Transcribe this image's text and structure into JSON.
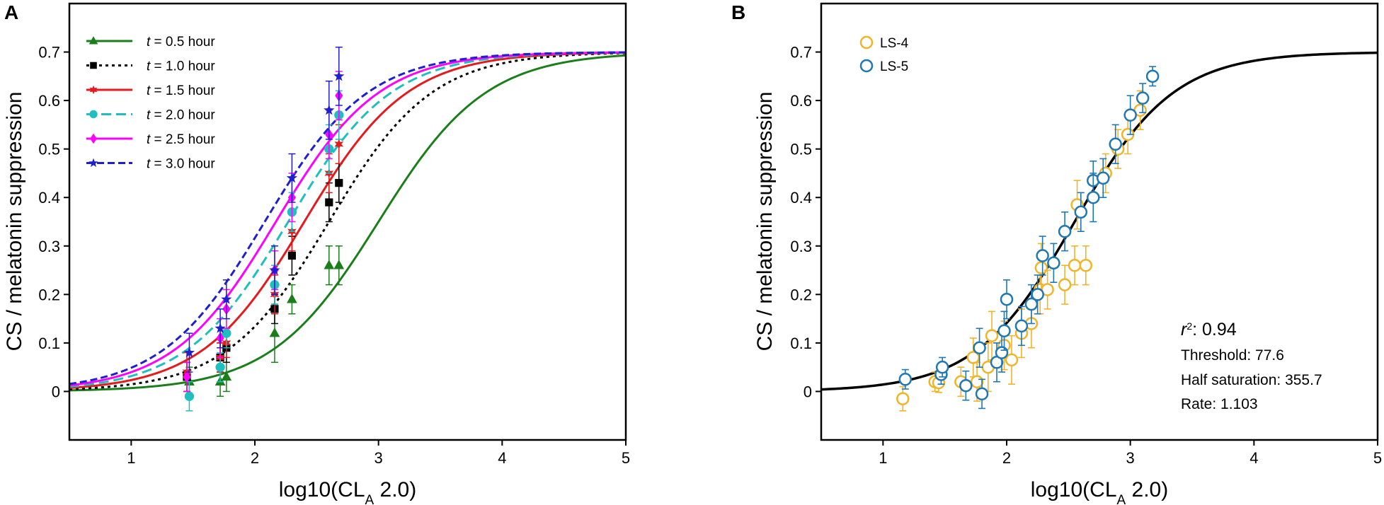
{
  "chart_data": [
    {
      "panel": "A",
      "type": "line",
      "xlabel": "log10(CL",
      "xlabel_sub": "A",
      "xlabel_suffix": " 2.0)",
      "ylabel": "CS / melatonin suppression",
      "xlim": [
        0.5,
        5
      ],
      "ylim": [
        -0.1,
        0.8
      ],
      "xticks": [
        1,
        2,
        3,
        4,
        5
      ],
      "xtick_labels": [
        "1",
        "2",
        "3",
        "4",
        "5"
      ],
      "yticks": [
        0,
        0.1,
        0.2,
        0.3,
        0.4,
        0.5,
        0.6,
        0.7
      ],
      "ytick_labels": [
        "0",
        "0.1",
        "0.2",
        "0.3",
        "0.4",
        "0.5",
        "0.6",
        "0.7"
      ],
      "legend_position": "top-left",
      "series": [
        {
          "name_var": "t",
          "name_rest": " = 0.5 hour",
          "color": "#1a7f1a",
          "dash": "solid",
          "marker": "triangle",
          "curve": {
            "max": 0.7,
            "mid": 3.0,
            "slope": 1.15
          },
          "points": [
            {
              "x": 1.47,
              "y": 0.02,
              "err": 0.03
            },
            {
              "x": 1.72,
              "y": 0.02,
              "err": 0.03
            },
            {
              "x": 1.77,
              "y": 0.03,
              "err": 0.03
            },
            {
              "x": 2.16,
              "y": 0.12,
              "err": 0.06
            },
            {
              "x": 2.3,
              "y": 0.19,
              "err": 0.03
            },
            {
              "x": 2.6,
              "y": 0.26,
              "err": 0.04
            },
            {
              "x": 2.68,
              "y": 0.26,
              "err": 0.04
            }
          ]
        },
        {
          "name_var": "t",
          "name_rest": " = 1.0 hour",
          "color": "#000000",
          "dash": "dot",
          "marker": "square",
          "curve": {
            "max": 0.7,
            "mid": 2.6,
            "slope": 1.2
          },
          "points": [
            {
              "x": 1.45,
              "y": 0.03,
              "err": 0.03
            },
            {
              "x": 1.72,
              "y": 0.07,
              "err": 0.03
            },
            {
              "x": 1.77,
              "y": 0.09,
              "err": 0.03
            },
            {
              "x": 2.16,
              "y": 0.17,
              "err": 0.03
            },
            {
              "x": 2.3,
              "y": 0.28,
              "err": 0.04
            },
            {
              "x": 2.6,
              "y": 0.39,
              "err": 0.04
            },
            {
              "x": 2.68,
              "y": 0.43,
              "err": 0.04
            }
          ]
        },
        {
          "name_var": "t",
          "name_rest": " = 1.5 hour",
          "color": "#e41a1c",
          "dash": "solid",
          "marker": "star6",
          "curve": {
            "max": 0.7,
            "mid": 2.4,
            "slope": 1.2
          },
          "points": [
            {
              "x": 1.45,
              "y": 0.04,
              "err": 0.04
            },
            {
              "x": 1.72,
              "y": 0.07,
              "err": 0.03
            },
            {
              "x": 1.77,
              "y": 0.1,
              "err": 0.03
            },
            {
              "x": 2.16,
              "y": 0.2,
              "err": 0.04
            },
            {
              "x": 2.3,
              "y": 0.33,
              "err": 0.04
            },
            {
              "x": 2.6,
              "y": 0.45,
              "err": 0.04
            },
            {
              "x": 2.68,
              "y": 0.51,
              "err": 0.04
            }
          ]
        },
        {
          "name_var": "t",
          "name_rest": " = 2.0 hour",
          "color": "#1fbfbf",
          "dash": "dash",
          "marker": "circle",
          "curve": {
            "max": 0.7,
            "mid": 2.27,
            "slope": 1.2
          },
          "points": [
            {
              "x": 1.47,
              "y": -0.01,
              "err": 0.03
            },
            {
              "x": 1.72,
              "y": 0.05,
              "err": 0.03
            },
            {
              "x": 1.77,
              "y": 0.12,
              "err": 0.03
            },
            {
              "x": 2.16,
              "y": 0.22,
              "err": 0.04
            },
            {
              "x": 2.3,
              "y": 0.37,
              "err": 0.04
            },
            {
              "x": 2.6,
              "y": 0.5,
              "err": 0.05
            },
            {
              "x": 2.68,
              "y": 0.57,
              "err": 0.05
            }
          ]
        },
        {
          "name_var": "t",
          "name_rest": " = 2.5 hour",
          "color": "#ff00ff",
          "dash": "solid",
          "marker": "diamond",
          "curve": {
            "max": 0.7,
            "mid": 2.17,
            "slope": 1.2
          },
          "points": [
            {
              "x": 1.45,
              "y": 0.03,
              "err": 0.03
            },
            {
              "x": 1.72,
              "y": 0.11,
              "err": 0.04
            },
            {
              "x": 1.77,
              "y": 0.17,
              "err": 0.04
            },
            {
              "x": 2.16,
              "y": 0.25,
              "err": 0.04
            },
            {
              "x": 2.3,
              "y": 0.4,
              "err": 0.05
            },
            {
              "x": 2.6,
              "y": 0.53,
              "err": 0.05
            },
            {
              "x": 2.68,
              "y": 0.61,
              "err": 0.05
            }
          ]
        },
        {
          "name_var": "t",
          "name_rest": " = 3.0 hour",
          "color": "#1f1fcf",
          "dash": "dashlong",
          "marker": "star5",
          "curve": {
            "max": 0.7,
            "mid": 2.08,
            "slope": 1.2
          },
          "points": [
            {
              "x": 1.47,
              "y": 0.08,
              "err": 0.04
            },
            {
              "x": 1.72,
              "y": 0.13,
              "err": 0.04
            },
            {
              "x": 1.77,
              "y": 0.19,
              "err": 0.04
            },
            {
              "x": 2.16,
              "y": 0.25,
              "err": 0.05
            },
            {
              "x": 2.3,
              "y": 0.44,
              "err": 0.05
            },
            {
              "x": 2.6,
              "y": 0.58,
              "err": 0.06
            },
            {
              "x": 2.68,
              "y": 0.65,
              "err": 0.06
            }
          ]
        }
      ]
    },
    {
      "panel": "B",
      "type": "scatter",
      "xlabel": "log10(CL",
      "xlabel_sub": "A",
      "xlabel_suffix": " 2.0)",
      "ylabel": "CS / melatonin suppression",
      "xlim": [
        0.5,
        5
      ],
      "ylim": [
        -0.1,
        0.8
      ],
      "xticks": [
        1,
        2,
        3,
        4,
        5
      ],
      "xtick_labels": [
        "1",
        "2",
        "3",
        "4",
        "5"
      ],
      "yticks": [
        0,
        0.1,
        0.2,
        0.3,
        0.4,
        0.5,
        0.6,
        0.7
      ],
      "ytick_labels": [
        "0",
        "0.1",
        "0.2",
        "0.3",
        "0.4",
        "0.5",
        "0.6",
        "0.7"
      ],
      "legend_position": "top-left",
      "fit_curve": {
        "color": "#000000",
        "max": 0.7,
        "mid": 2.55,
        "slope": 1.25
      },
      "stats": {
        "r2_var": "r",
        "r2_sup": "2",
        "r2_value": ": 0.94",
        "threshold": "Threshold: 77.6",
        "half_saturation": "Half saturation: 355.7",
        "rate": "Rate: 1.103"
      },
      "series": [
        {
          "name": "LS-4",
          "color": "#f0b429",
          "points": [
            {
              "x": 1.16,
              "y": -0.015,
              "err": 0.025
            },
            {
              "x": 1.42,
              "y": 0.02,
              "err": 0.02
            },
            {
              "x": 1.45,
              "y": 0.018,
              "err": 0.02
            },
            {
              "x": 1.63,
              "y": 0.02,
              "err": 0.03
            },
            {
              "x": 1.73,
              "y": 0.07,
              "err": 0.04
            },
            {
              "x": 1.76,
              "y": 0.02,
              "err": 0.04
            },
            {
              "x": 1.85,
              "y": 0.05,
              "err": 0.05
            },
            {
              "x": 1.88,
              "y": 0.115,
              "err": 0.05
            },
            {
              "x": 1.98,
              "y": 0.095,
              "err": 0.05
            },
            {
              "x": 2.04,
              "y": 0.065,
              "err": 0.05
            },
            {
              "x": 2.12,
              "y": 0.12,
              "err": 0.05
            },
            {
              "x": 2.2,
              "y": 0.14,
              "err": 0.05
            },
            {
              "x": 2.27,
              "y": 0.21,
              "err": 0.05
            },
            {
              "x": 2.28,
              "y": 0.255,
              "err": 0.05
            },
            {
              "x": 2.33,
              "y": 0.21,
              "err": 0.04
            },
            {
              "x": 2.47,
              "y": 0.22,
              "err": 0.04
            },
            {
              "x": 2.55,
              "y": 0.26,
              "err": 0.04
            },
            {
              "x": 2.57,
              "y": 0.385,
              "err": 0.05
            },
            {
              "x": 2.64,
              "y": 0.26,
              "err": 0.04
            },
            {
              "x": 2.8,
              "y": 0.45,
              "err": 0.04
            },
            {
              "x": 2.9,
              "y": 0.5,
              "err": 0.04
            },
            {
              "x": 2.98,
              "y": 0.53,
              "err": 0.04
            },
            {
              "x": 3.08,
              "y": 0.58,
              "err": 0.04
            }
          ]
        },
        {
          "name": "LS-5",
          "color": "#1f77b4",
          "points": [
            {
              "x": 1.18,
              "y": 0.025,
              "err": 0.02
            },
            {
              "x": 1.47,
              "y": 0.035,
              "err": 0.02
            },
            {
              "x": 1.48,
              "y": 0.05,
              "err": 0.02
            },
            {
              "x": 1.67,
              "y": 0.012,
              "err": 0.03
            },
            {
              "x": 1.78,
              "y": 0.09,
              "err": 0.04
            },
            {
              "x": 1.8,
              "y": -0.005,
              "err": 0.03
            },
            {
              "x": 1.92,
              "y": 0.06,
              "err": 0.04
            },
            {
              "x": 1.96,
              "y": 0.08,
              "err": 0.04
            },
            {
              "x": 1.98,
              "y": 0.125,
              "err": 0.04
            },
            {
              "x": 2.0,
              "y": 0.19,
              "err": 0.04
            },
            {
              "x": 2.12,
              "y": 0.135,
              "err": 0.04
            },
            {
              "x": 2.2,
              "y": 0.18,
              "err": 0.04
            },
            {
              "x": 2.25,
              "y": 0.2,
              "err": 0.04
            },
            {
              "x": 2.29,
              "y": 0.28,
              "err": 0.04
            },
            {
              "x": 2.38,
              "y": 0.265,
              "err": 0.04
            },
            {
              "x": 2.47,
              "y": 0.33,
              "err": 0.04
            },
            {
              "x": 2.6,
              "y": 0.37,
              "err": 0.04
            },
            {
              "x": 2.7,
              "y": 0.435,
              "err": 0.04
            },
            {
              "x": 2.7,
              "y": 0.4,
              "err": 0.05
            },
            {
              "x": 2.78,
              "y": 0.44,
              "err": 0.04
            },
            {
              "x": 2.88,
              "y": 0.51,
              "err": 0.04
            },
            {
              "x": 3.0,
              "y": 0.57,
              "err": 0.04
            },
            {
              "x": 3.1,
              "y": 0.605,
              "err": 0.03
            },
            {
              "x": 3.18,
              "y": 0.65,
              "err": 0.02
            }
          ]
        }
      ]
    }
  ]
}
